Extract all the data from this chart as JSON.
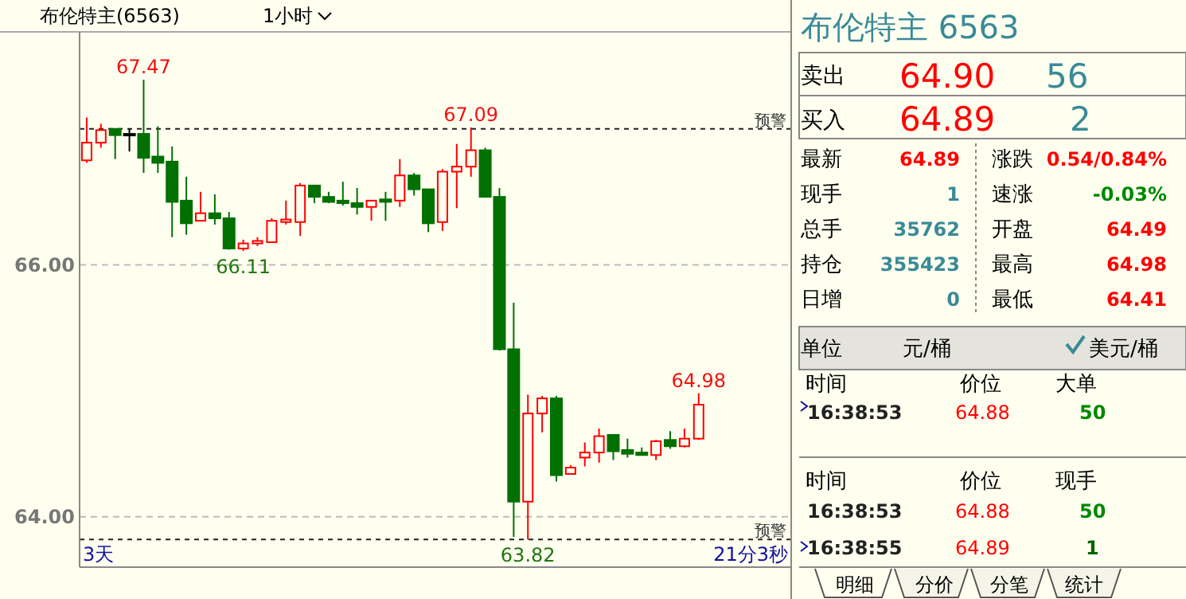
{
  "chart_data": [
    {
      "type": "candlestick",
      "title": "布伦特主(6563)",
      "subtitle": "1小时",
      "categories": [
        null,
        null,
        null,
        null,
        null,
        null,
        null,
        null,
        null,
        null,
        null,
        null,
        null,
        null,
        null,
        null,
        null,
        null,
        null,
        null,
        null,
        null,
        null,
        null,
        null,
        null,
        null,
        null,
        null,
        null,
        null,
        null,
        null,
        null,
        null,
        null,
        null,
        null,
        null,
        null,
        null,
        null,
        null,
        null,
        null,
        null,
        null,
        null,
        null,
        null
      ],
      "ohlc": [
        [
          66.83,
          67.17,
          66.81,
          66.97
        ],
        [
          66.97,
          67.12,
          66.93,
          67.07
        ],
        [
          67.08,
          67.08,
          66.84,
          67.03
        ],
        [
          67.04,
          67.08,
          66.9,
          67.04
        ],
        [
          67.04,
          67.47,
          66.73,
          66.85
        ],
        [
          66.86,
          67.1,
          66.73,
          66.81
        ],
        [
          66.82,
          66.94,
          66.22,
          66.5
        ],
        [
          66.51,
          66.7,
          66.24,
          66.33
        ],
        [
          66.35,
          66.58,
          66.35,
          66.41
        ],
        [
          66.41,
          66.56,
          66.32,
          66.37
        ],
        [
          66.37,
          66.42,
          66.12,
          66.13
        ],
        [
          66.13,
          66.2,
          66.11,
          66.17
        ],
        [
          66.17,
          66.22,
          66.15,
          66.19
        ],
        [
          66.18,
          66.37,
          66.18,
          66.35
        ],
        [
          66.34,
          66.51,
          66.32,
          66.36
        ],
        [
          66.34,
          66.65,
          66.23,
          66.63
        ],
        [
          66.63,
          66.63,
          66.49,
          66.54
        ],
        [
          66.54,
          66.58,
          66.49,
          66.5
        ],
        [
          66.51,
          66.66,
          66.47,
          66.49
        ],
        [
          66.49,
          66.61,
          66.4,
          66.46
        ],
        [
          66.46,
          66.51,
          66.35,
          66.51
        ],
        [
          66.52,
          66.58,
          66.35,
          66.5
        ],
        [
          66.51,
          66.84,
          66.46,
          66.71
        ],
        [
          66.71,
          66.73,
          66.55,
          66.6
        ],
        [
          66.6,
          66.6,
          66.26,
          66.33
        ],
        [
          66.34,
          66.76,
          66.27,
          66.74
        ],
        [
          66.74,
          66.96,
          66.45,
          66.78
        ],
        [
          66.78,
          67.09,
          66.7,
          66.91
        ],
        [
          66.91,
          66.93,
          66.54,
          66.54
        ],
        [
          66.54,
          66.61,
          65.32,
          65.33
        ],
        [
          65.33,
          65.7,
          63.84,
          64.12
        ],
        [
          64.12,
          64.97,
          63.82,
          64.82
        ],
        [
          64.82,
          64.96,
          64.67,
          64.94
        ],
        [
          64.94,
          64.96,
          64.28,
          64.33
        ],
        [
          64.34,
          64.41,
          64.34,
          64.39
        ],
        [
          64.47,
          64.59,
          64.4,
          64.51
        ],
        [
          64.51,
          64.7,
          64.43,
          64.64
        ],
        [
          64.65,
          64.65,
          64.45,
          64.52
        ],
        [
          64.53,
          64.62,
          64.47,
          64.5
        ],
        [
          64.51,
          64.55,
          64.49,
          64.49
        ],
        [
          64.49,
          64.61,
          64.45,
          64.6
        ],
        [
          64.61,
          64.68,
          64.54,
          64.56
        ],
        [
          64.56,
          64.7,
          64.55,
          64.62
        ],
        [
          64.62,
          64.98,
          64.61,
          64.89
        ],
        null,
        null,
        null,
        null,
        null,
        null
      ],
      "ylim": [
        63.6,
        67.85
      ],
      "yticks": [
        {
          "value": 64,
          "label": "64.00"
        },
        {
          "value": 66,
          "label": "66.00"
        }
      ],
      "grid": "y",
      "tick_labels": "y",
      "ref_lines": [
        {
          "axis": "y",
          "value": 67.08,
          "label": "预警",
          "line_style": "dashed"
        },
        {
          "axis": "y",
          "value": 63.82,
          "label": "预警",
          "line_style": "dashed"
        }
      ],
      "annotations": [
        "67.47",
        "67.09",
        "66.11",
        "63.82",
        "64.98",
        "3天",
        "21分3秒"
      ]
    },
    {
      "type": "other",
      "title": "布伦特主 6563",
      "annotations": [
        "卖出",
        "64.90",
        "56",
        "买入",
        "64.89",
        "2",
        "最新",
        "64.89",
        "涨跌",
        "0.54/0.84%",
        "现手",
        "1",
        "速涨",
        "-0.03%",
        "总手",
        "35762",
        "开盘",
        "64.49",
        "持仓",
        "355423",
        "最高",
        "64.98",
        "日增",
        "0",
        "最低",
        "64.41",
        "单位",
        "元/桶",
        "美元/桶",
        "时间",
        "价位",
        "大单",
        "16:38:53",
        "64.88",
        "50",
        "时间",
        "价位",
        "现手",
        "16:38:53",
        "64.88",
        "50",
        "16:38:55",
        "64.89",
        "1",
        "明细",
        "分价",
        "分笔",
        "统计"
      ]
    }
  ]
}
